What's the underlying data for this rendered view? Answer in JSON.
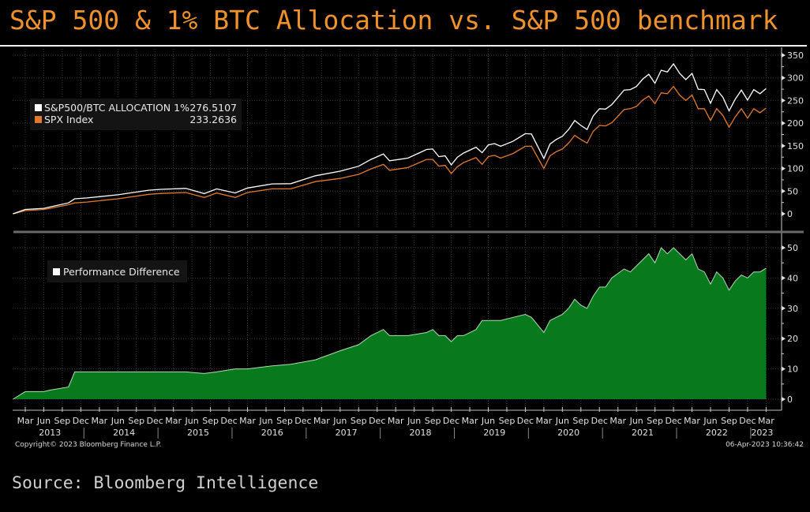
{
  "title": "S&P 500 & 1% BTC Allocation vs. S&P 500 benchmark",
  "source": "Source: Bloomberg Intelligence",
  "copyright": "Copyright© 2023 Bloomberg Finance L.P.",
  "timestamp": "06-Apr-2023 10:36:42",
  "chart_data": [
    {
      "type": "line",
      "panel": "upper",
      "ylim": [
        0,
        350
      ],
      "yticks": [
        0,
        50,
        100,
        150,
        200,
        250,
        300,
        350
      ],
      "grid": true,
      "legend_placement": "top-left",
      "legend": [
        {
          "label": "S&P500/BTC ALLOCATION 1%",
          "last_value": "276.5107",
          "color": "#FFFFFF"
        },
        {
          "label": "SPX  Index",
          "last_value": "233.2636",
          "color": "#E07A2E"
        }
      ],
      "x": [
        "2013-01",
        "2013-03",
        "2013-06",
        "2013-07",
        "2013-10",
        "2013-11",
        "2014-01",
        "2014-06",
        "2014-11",
        "2015-01",
        "2015-05",
        "2015-08",
        "2015-10",
        "2016-01",
        "2016-03",
        "2016-07",
        "2016-10",
        "2017-02",
        "2017-06",
        "2017-09",
        "2017-11",
        "2018-01",
        "2018-02",
        "2018-05",
        "2018-08",
        "2018-09",
        "2018-10",
        "2018-11",
        "2018-12",
        "2019-01",
        "2019-02",
        "2019-04",
        "2019-05",
        "2019-06",
        "2019-07",
        "2019-08",
        "2019-10",
        "2019-12",
        "2020-01",
        "2020-03",
        "2020-04",
        "2020-05",
        "2020-06",
        "2020-07",
        "2020-08",
        "2020-09",
        "2020-10",
        "2020-11",
        "2020-12",
        "2021-01",
        "2021-02",
        "2021-04",
        "2021-05",
        "2021-06",
        "2021-07",
        "2021-08",
        "2021-09",
        "2021-10",
        "2021-11",
        "2021-12",
        "2022-01",
        "2022-02",
        "2022-03",
        "2022-04",
        "2022-05",
        "2022-06",
        "2022-07",
        "2022-08",
        "2022-09",
        "2022-10",
        "2022-11",
        "2022-12",
        "2023-01",
        "2023-02",
        "2023-03"
      ],
      "series": [
        {
          "name": "S&P500/BTC ALLOCATION 1%",
          "color": "#FFFFFF",
          "values": [
            0,
            9.5,
            12,
            15,
            24,
            33,
            35,
            42,
            52,
            54,
            56,
            44.5,
            55,
            46,
            57,
            66,
            66.5,
            84,
            94,
            105,
            120,
            132,
            117,
            123,
            142,
            143,
            126,
            128,
            108,
            125,
            134,
            147,
            135,
            152,
            155,
            149,
            160,
            177,
            176,
            122,
            154,
            164,
            171,
            186,
            206,
            195,
            186,
            216,
            232,
            231,
            241,
            273,
            274,
            281,
            297,
            308,
            288,
            317,
            313,
            331,
            310,
            296,
            310,
            275,
            274,
            244,
            274,
            257,
            227,
            253,
            273,
            251,
            274,
            265,
            276.51
          ]
        },
        {
          "name": "SPX  Index",
          "color": "#E07A2E",
          "values": [
            0,
            7,
            9.5,
            12,
            20,
            24,
            26,
            33,
            43,
            45,
            47,
            36,
            46,
            36,
            47,
            55,
            55,
            71,
            78,
            87,
            99,
            109,
            96,
            102,
            120,
            120,
            105,
            107,
            89,
            104,
            113,
            124,
            109,
            126,
            129,
            123,
            133,
            149,
            149,
            100,
            128,
            137,
            143,
            156,
            173,
            164,
            156,
            182,
            195,
            194,
            201,
            230,
            232,
            237,
            251,
            260,
            243,
            267,
            265,
            281,
            262,
            250,
            262,
            232,
            232,
            206,
            232,
            217,
            191,
            214,
            232,
            211,
            232,
            223,
            233.26
          ]
        }
      ]
    },
    {
      "type": "area",
      "panel": "lower",
      "ylim": [
        0,
        55
      ],
      "yticks": [
        0,
        10,
        20,
        30,
        40,
        50
      ],
      "grid": true,
      "legend_placement": "top-left",
      "legend": [
        {
          "label": "Performance Difference",
          "color": "#FFFFFF"
        }
      ],
      "fill_color": "#087A1E",
      "series": [
        {
          "name": "Performance Difference",
          "values": [
            0,
            2.5,
            2.5,
            3,
            4,
            9,
            9,
            9,
            9,
            9,
            9,
            8.5,
            9,
            10,
            10,
            11,
            11.5,
            13,
            16,
            18,
            21,
            23,
            21,
            21,
            22,
            23,
            21,
            21,
            19,
            21,
            21,
            23,
            26,
            26,
            26,
            26,
            27,
            28,
            27,
            22,
            26,
            27,
            28,
            30,
            33,
            31,
            30,
            34,
            37,
            37,
            40,
            43,
            42,
            44,
            46,
            48,
            45,
            50,
            48,
            50,
            48,
            46,
            48,
            43,
            42,
            38,
            42,
            40,
            36,
            39,
            41,
            40,
            42,
            42,
            43.25
          ]
        }
      ]
    }
  ],
  "x_axis": {
    "month_labels": [
      "Mar",
      "Jun",
      "Sep",
      "Dec"
    ],
    "first_tick": "2013-03",
    "last_tick": "2023-03",
    "year_labels": [
      "2013",
      "2014",
      "2015",
      "2016",
      "2017",
      "2018",
      "2019",
      "2020",
      "2021",
      "2022",
      "2023"
    ]
  }
}
